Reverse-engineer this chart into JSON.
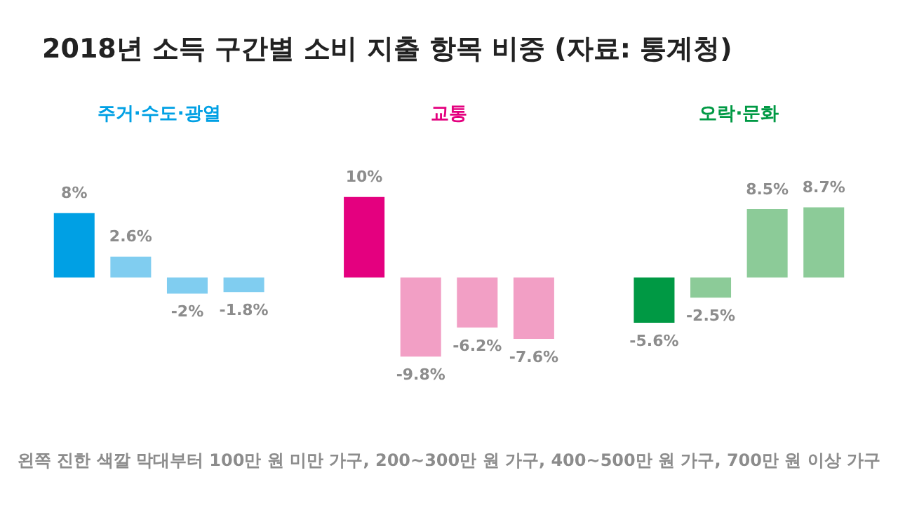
{
  "chart_data": {
    "type": "bar",
    "title": "2018년 소득 구간별 소비 지출 항목 비중 (자료: 통계청)",
    "categories": [
      "주거·수도·광열",
      "교통",
      "오락·문화"
    ],
    "series": [
      {
        "colors": [
          "#00a0e4",
          "#e4007f",
          "#009944"
        ],
        "values": [
          8,
          10,
          -5.6
        ],
        "value_labels": [
          "8%",
          "10%",
          "-5.6%"
        ]
      },
      {
        "colors": [
          "#80cdf0",
          "#f29fc5",
          "#8ccb98"
        ],
        "values": [
          2.6,
          -9.8,
          -2.5
        ],
        "value_labels": [
          "2.6%",
          "-9.8%",
          "-2.5%"
        ]
      },
      {
        "colors": [
          "#80cdf0",
          "#f29fc5",
          "#8ccb98"
        ],
        "values": [
          -2,
          -6.2,
          8.5
        ],
        "value_labels": [
          "-2%",
          "-6.2%",
          "8.5%"
        ]
      },
      {
        "colors": [
          "#80cdf0",
          "#f29fc5",
          "#8ccb98"
        ],
        "values": [
          -1.8,
          -7.6,
          8.7
        ],
        "value_labels": [
          "-1.8%",
          "-7.6%",
          "8.7%"
        ]
      }
    ],
    "annotations": [
      "왼쪽 진한 색깔 막대부터 100만 원 미만 가구, 200~300만 원 가구, 400~500만 원 가구, 700만 원 이상 가구"
    ]
  }
}
